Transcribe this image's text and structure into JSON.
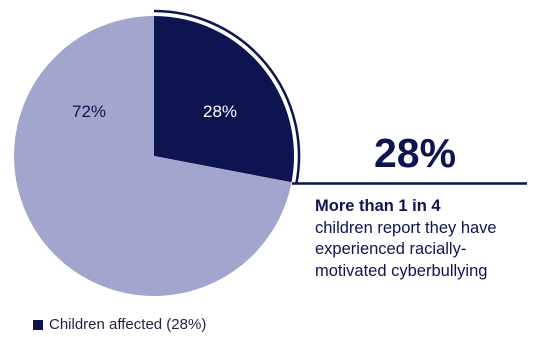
{
  "chart_data": {
    "type": "pie",
    "slices": [
      {
        "label": "28%",
        "value": 28,
        "color": "#0d1450",
        "label_color": "#ffffff"
      },
      {
        "label": "72%",
        "value": 72,
        "color": "#a2a6cf",
        "label_color": "#0d1450"
      }
    ],
    "legend": [
      {
        "label": "Children affected (28%)",
        "color": "#0d1450"
      }
    ],
    "legend_position": "bottom-left"
  },
  "callout": {
    "value": "28%",
    "headline": "More than 1 in 4",
    "text": "children report they have experienced racially-motivated cyberbullying"
  },
  "colors": {
    "accent": "#0d1450",
    "muted": "#a2a6cf"
  }
}
